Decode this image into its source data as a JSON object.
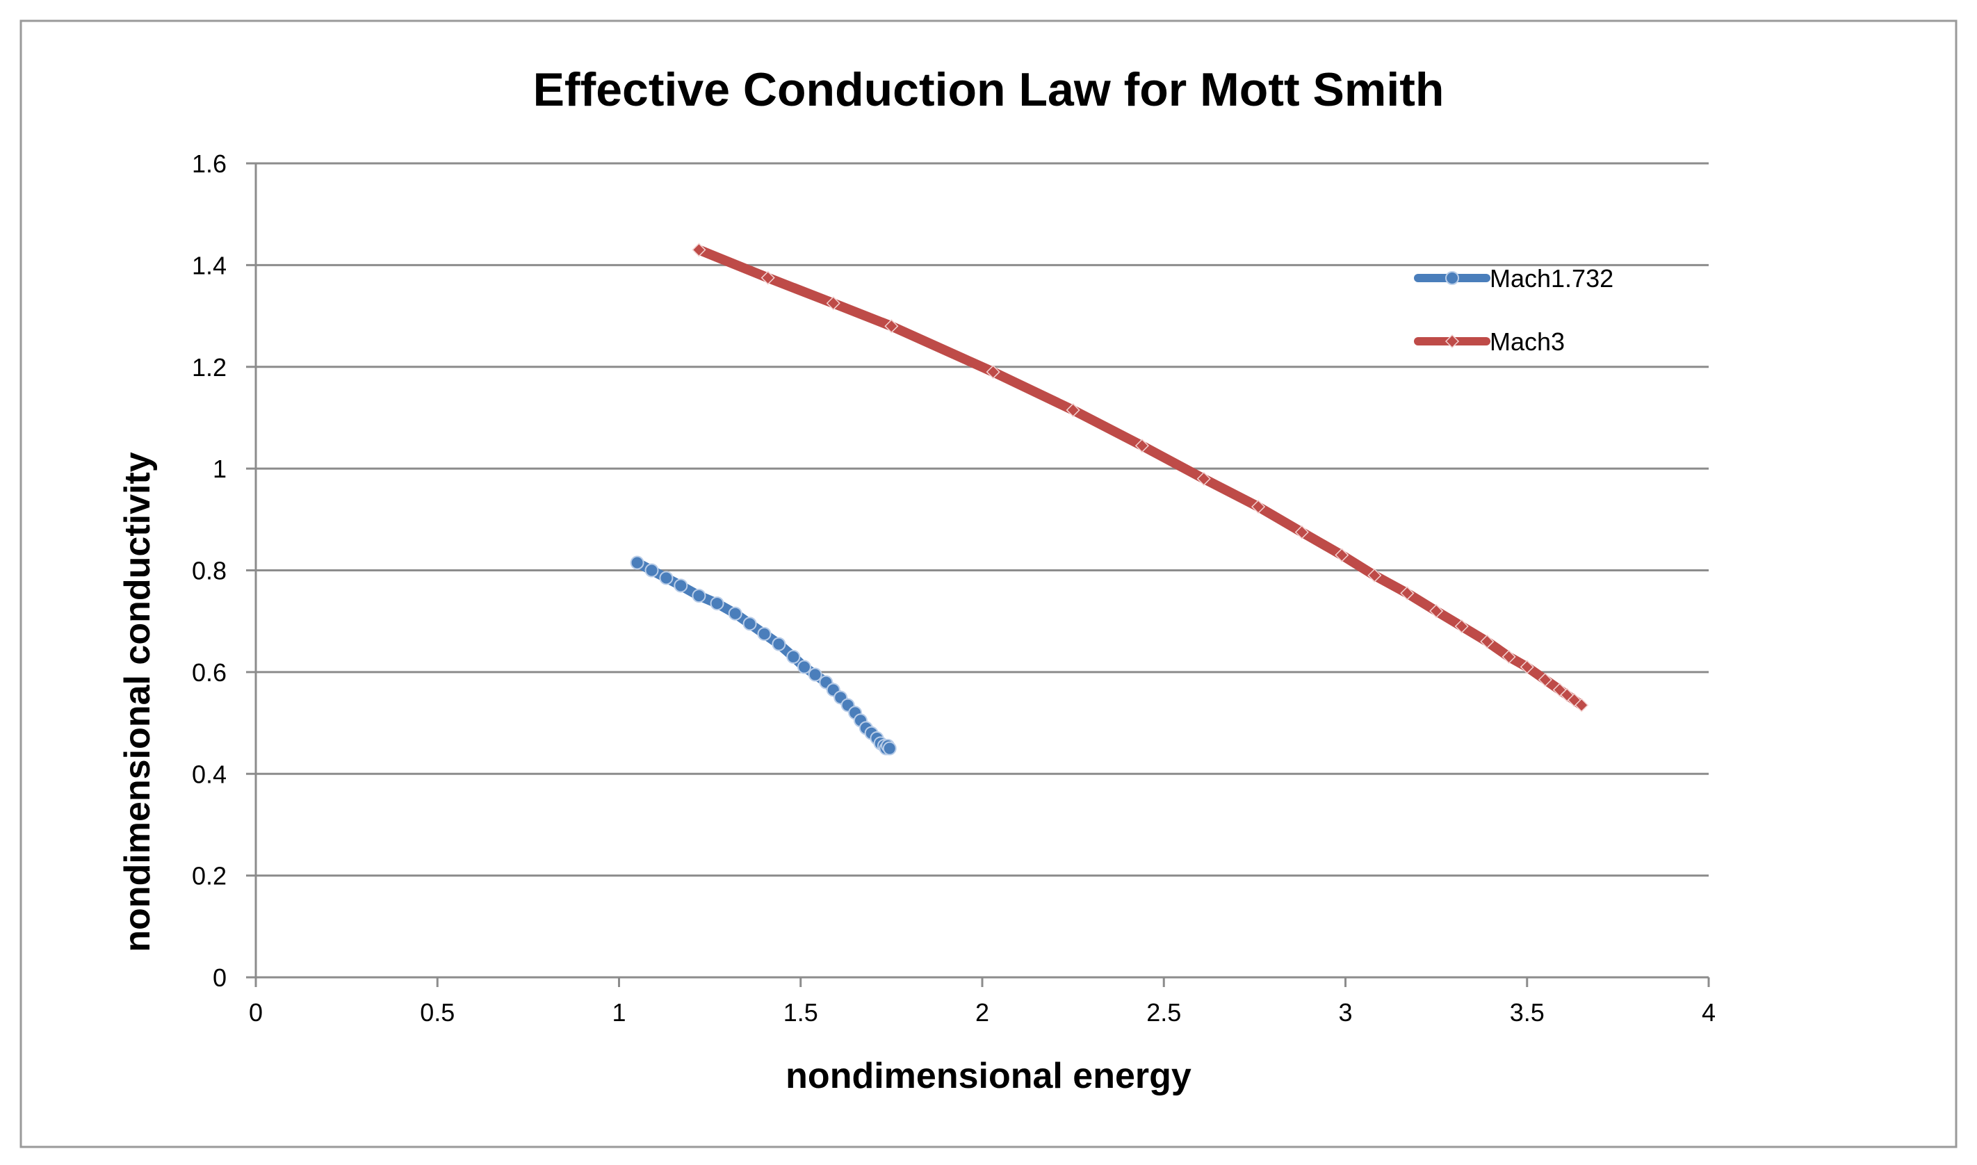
{
  "chart_data": {
    "type": "line",
    "title": "Effective Conduction Law for Mott Smith",
    "xlabel": "nondimensional energy",
    "ylabel": "nondimensional conductivity",
    "xlim": [
      0,
      4
    ],
    "ylim": [
      0,
      1.6
    ],
    "x_ticks": [
      "0",
      "0.5",
      "1",
      "1.5",
      "2",
      "2.5",
      "3",
      "3.5",
      "4"
    ],
    "y_ticks": [
      "0",
      "0.2",
      "0.4",
      "0.6",
      "0.8",
      "1",
      "1.2",
      "1.4",
      "1.6"
    ],
    "grid": true,
    "legend_position": "right",
    "series": [
      {
        "name": "Mach1.732",
        "color": "#4a7ebb",
        "marker": "circle",
        "x": [
          1.05,
          1.09,
          1.13,
          1.17,
          1.22,
          1.27,
          1.32,
          1.36,
          1.4,
          1.44,
          1.48,
          1.51,
          1.54,
          1.57,
          1.59,
          1.61,
          1.63,
          1.65,
          1.665,
          1.68,
          1.695,
          1.71,
          1.72,
          1.73,
          1.735,
          1.74,
          1.745
        ],
        "y": [
          0.815,
          0.8,
          0.785,
          0.77,
          0.75,
          0.735,
          0.715,
          0.695,
          0.675,
          0.655,
          0.63,
          0.61,
          0.595,
          0.58,
          0.565,
          0.55,
          0.535,
          0.52,
          0.505,
          0.49,
          0.48,
          0.47,
          0.46,
          0.455,
          0.45,
          0.455,
          0.45
        ]
      },
      {
        "name": "Mach3",
        "color": "#be4b48",
        "marker": "diamond",
        "x": [
          1.22,
          1.41,
          1.59,
          1.75,
          2.03,
          2.25,
          2.44,
          2.61,
          2.76,
          2.88,
          2.99,
          3.08,
          3.17,
          3.25,
          3.32,
          3.39,
          3.45,
          3.5,
          3.55,
          3.59,
          3.61,
          3.63,
          3.65
        ],
        "y": [
          1.43,
          1.375,
          1.325,
          1.28,
          1.19,
          1.115,
          1.045,
          0.98,
          0.925,
          0.875,
          0.83,
          0.79,
          0.755,
          0.72,
          0.69,
          0.66,
          0.63,
          0.61,
          0.585,
          0.565,
          0.555,
          0.545,
          0.535
        ]
      }
    ]
  }
}
